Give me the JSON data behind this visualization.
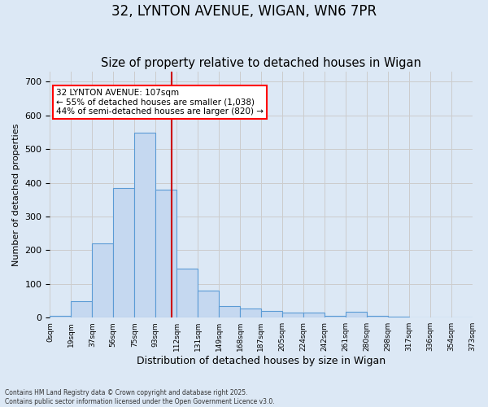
{
  "title": "32, LYNTON AVENUE, WIGAN, WN6 7PR",
  "subtitle": "Size of property relative to detached houses in Wigan",
  "xlabel": "Distribution of detached houses by size in Wigan",
  "ylabel": "Number of detached properties",
  "bin_labels": [
    "0sqm",
    "19sqm",
    "37sqm",
    "56sqm",
    "75sqm",
    "93sqm",
    "112sqm",
    "131sqm",
    "149sqm",
    "168sqm",
    "187sqm",
    "205sqm",
    "224sqm",
    "242sqm",
    "261sqm",
    "280sqm",
    "298sqm",
    "317sqm",
    "336sqm",
    "354sqm",
    "373sqm"
  ],
  "bar_heights": [
    5,
    50,
    220,
    385,
    550,
    380,
    145,
    80,
    35,
    28,
    20,
    15,
    15,
    5,
    18,
    5,
    2,
    1,
    1,
    1
  ],
  "bar_color": "#c5d8f0",
  "bar_edge_color": "#5b9bd5",
  "annotation_text": "32 LYNTON AVENUE: 107sqm\n← 55% of detached houses are smaller (1,038)\n44% of semi-detached houses are larger (820) →",
  "annotation_box_color": "white",
  "annotation_box_edge": "red",
  "red_line_color": "#cc0000",
  "grid_color": "#cccccc",
  "background_color": "#dce8f5",
  "footer": "Contains HM Land Registry data © Crown copyright and database right 2025.\nContains public sector information licensed under the Open Government Licence v3.0.",
  "ylim": [
    0,
    730
  ],
  "yticks": [
    0,
    100,
    200,
    300,
    400,
    500,
    600,
    700
  ],
  "title_fontsize": 12,
  "subtitle_fontsize": 10.5
}
